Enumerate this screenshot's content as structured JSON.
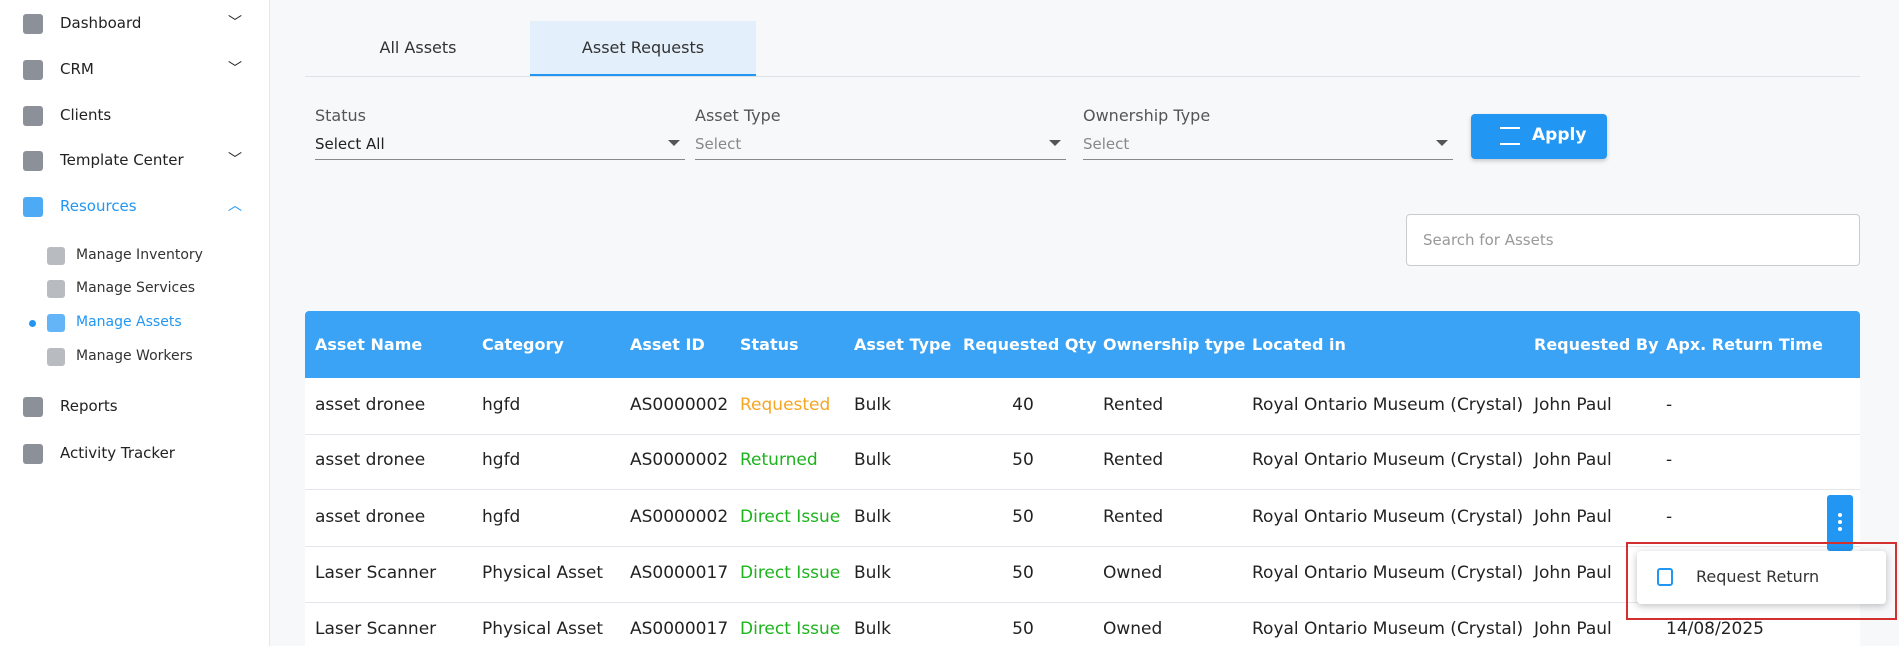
{
  "sidebar": {
    "items": [
      "Dashboard",
      "CRM",
      "Clients",
      "Template Center",
      "Resources",
      "Reports",
      "Activity Tracker"
    ],
    "subitems": [
      "Manage Inventory",
      "Manage Services",
      "Manage Assets",
      "Manage Workers"
    ]
  },
  "tabs": [
    "All Assets",
    "Asset Requests"
  ],
  "filters": [
    {
      "label": "Status",
      "value": "Select All"
    },
    {
      "label": "Asset Type",
      "value": "Select"
    },
    {
      "label": "Ownership Type",
      "value": "Select"
    }
  ],
  "apply": "Apply",
  "search_placeholder": "Search for Assets",
  "table": {
    "columns": [
      "Asset Name",
      "Category",
      "Asset ID",
      "Status",
      "Asset Type",
      "Requested Qty",
      "Ownership type",
      "Located in",
      "Requested By",
      "Apx. Return Time"
    ],
    "rows": [
      {
        "cells": [
          "asset dronee",
          "hgfd",
          "AS0000002",
          "Requested",
          "Bulk",
          "40",
          "Rented",
          "Royal Ontario Museum (Crystal)",
          "John Paul",
          "-"
        ],
        "status_color": "#f5a623"
      },
      {
        "cells": [
          "asset dronee",
          "hgfd",
          "AS0000002",
          "Returned",
          "Bulk",
          "50",
          "Rented",
          "Royal Ontario Museum (Crystal)",
          "John Paul",
          "-"
        ],
        "status_color": "#1db31d"
      },
      {
        "cells": [
          "asset dronee",
          "hgfd",
          "AS0000002",
          "Direct Issue",
          "Bulk",
          "50",
          "Rented",
          "Royal Ontario Museum (Crystal)",
          "John Paul",
          "-"
        ],
        "status_color": "#1db31d"
      },
      {
        "cells": [
          "Laser Scanner",
          "Physical Asset",
          "AS0000017",
          "Direct Issue",
          "Bulk",
          "50",
          "Owned",
          "Royal Ontario Museum (Crystal)",
          "John Paul",
          ""
        ],
        "status_color": "#1db31d"
      },
      {
        "cells": [
          "Laser Scanner",
          "Physical Asset",
          "AS0000017",
          "Direct Issue",
          "Bulk",
          "50",
          "Owned",
          "Royal Ontario Museum (Crystal)",
          "John Paul",
          "14/08/2025"
        ],
        "status_color": "#1db31d"
      }
    ]
  },
  "menu": {
    "item": "Request Return"
  }
}
